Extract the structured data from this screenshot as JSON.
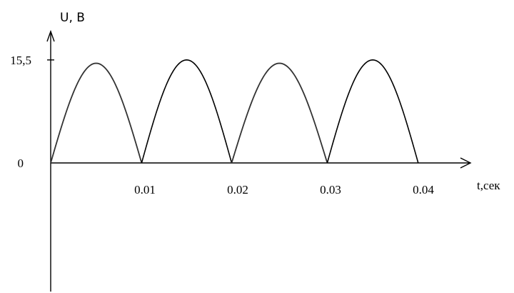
{
  "chart_data": {
    "type": "line",
    "title": "",
    "ylabel": "U, В",
    "xlabel": "t,сек",
    "x_ticks": [
      {
        "value": 0.01,
        "label": "0.01"
      },
      {
        "value": 0.02,
        "label": "0.02"
      },
      {
        "value": 0.03,
        "label": "0.03"
      },
      {
        "value": 0.04,
        "label": "0.04"
      }
    ],
    "y_ticks": [
      {
        "value": 0,
        "label": "0"
      },
      {
        "value": 15.5,
        "label": "15,5"
      }
    ],
    "xlim": [
      0,
      0.046
    ],
    "ylim": [
      -11,
      16.8
    ],
    "series": [
      {
        "arches": [
          {
            "x_start": 0.0,
            "x_end": 0.0098,
            "peak": 15.0
          },
          {
            "x_start": 0.0098,
            "x_end": 0.0195,
            "peak": 15.5
          },
          {
            "x_start": 0.0195,
            "x_end": 0.0298,
            "peak": 15.0
          },
          {
            "x_start": 0.0298,
            "x_end": 0.0396,
            "peak": 15.5
          }
        ]
      }
    ]
  }
}
